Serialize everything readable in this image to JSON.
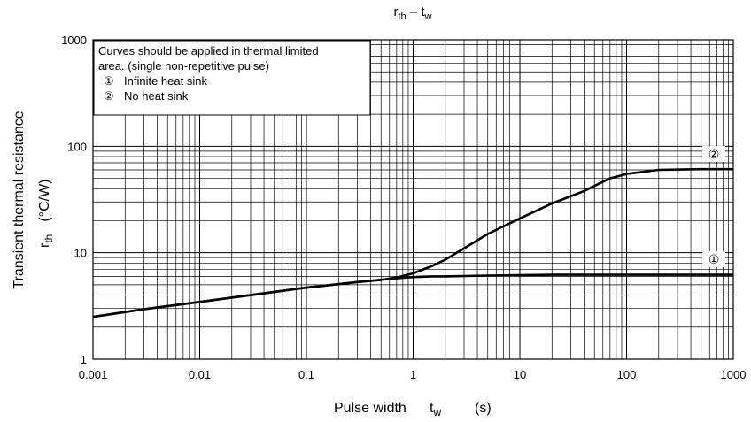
{
  "chart_data": {
    "type": "line",
    "title": {
      "main": "r",
      "main_sub": "th",
      "sep": " – ",
      "second": "t",
      "second_sub": "w"
    },
    "xlabel": {
      "text": "Pulse width",
      "sym": "t",
      "sym_sub": "w",
      "unit": "(s)"
    },
    "ylabel": {
      "line1": "Transient thermal resistance",
      "sym": "r",
      "sym_sub": "th",
      "unit": "(°C/W)"
    },
    "x_scale": "log",
    "y_scale": "log",
    "xlim": [
      0.001,
      1000
    ],
    "ylim": [
      1,
      1000
    ],
    "x_ticks": [
      0.001,
      0.01,
      0.1,
      1,
      10,
      100,
      1000
    ],
    "x_tick_labels": [
      "0.001",
      "0.01",
      "0.1",
      "1",
      "10",
      "100",
      "1000"
    ],
    "y_ticks": [
      1,
      10,
      100,
      1000
    ],
    "y_tick_labels": [
      "1",
      "10",
      "100",
      "1000"
    ],
    "grid": true,
    "note": {
      "lines": [
        "Curves should be applied in thermal limited",
        "area. (single non-repetitive pulse)"
      ],
      "items": [
        {
          "marker": "①",
          "text": "Infinite heat sink"
        },
        {
          "marker": "②",
          "text": "No heat sink"
        }
      ]
    },
    "series": [
      {
        "marker": "①",
        "x": [
          0.001,
          0.003,
          0.01,
          0.03,
          0.1,
          0.3,
          0.7,
          1,
          1.5,
          2,
          5,
          10,
          20,
          100,
          1000
        ],
        "y": [
          2.5,
          2.95,
          3.45,
          4.0,
          4.7,
          5.3,
          5.75,
          5.9,
          6.0,
          6.0,
          6.1,
          6.15,
          6.2,
          6.2,
          6.2
        ]
      },
      {
        "marker": "②",
        "x": [
          0.001,
          0.003,
          0.01,
          0.03,
          0.1,
          0.3,
          0.5,
          0.7,
          1,
          1.5,
          2,
          3,
          5,
          10,
          20,
          40,
          70,
          100,
          200,
          500,
          1000
        ],
        "y": [
          2.5,
          2.95,
          3.45,
          4.0,
          4.7,
          5.3,
          5.55,
          5.85,
          6.4,
          7.5,
          8.6,
          11,
          15,
          21,
          29,
          38,
          50,
          55,
          60,
          61,
          61
        ]
      }
    ]
  }
}
